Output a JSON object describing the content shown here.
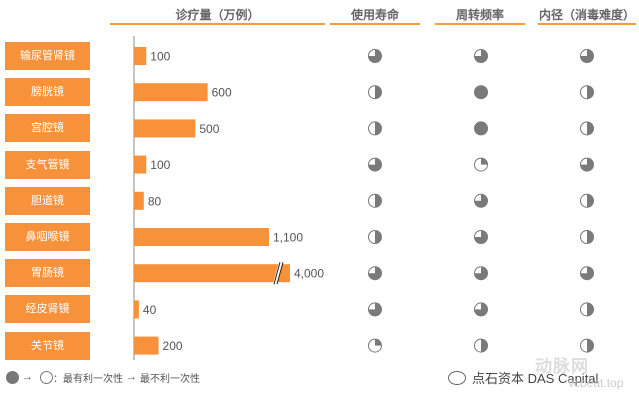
{
  "headers": {
    "volume": "诊疗量（万例）",
    "lifespan": "使用寿命",
    "turnover": "周转频率",
    "diameter": "内径（消毒难度）"
  },
  "legend": {
    "text": "：最有利一次性",
    "arrow_glyph": "→",
    "text2": "最不利一次性"
  },
  "watermark": {
    "brand": "点石资本 DAS Capital",
    "site_text": "动脉网",
    "site_url": "vcbeat.top"
  },
  "colors": {
    "accent": "#f7923a",
    "pie_fill": "#7a7a7a"
  },
  "chart_data": {
    "type": "bar",
    "categories": [
      "输尿管肾镜",
      "膀胱镜",
      "宫腔镜",
      "支气管镜",
      "胆道镜",
      "鼻咽喉镜",
      "胃肠镜",
      "经皮肾镜",
      "关节镜"
    ],
    "values": [
      100,
      600,
      500,
      100,
      80,
      1100,
      4000,
      40,
      200
    ],
    "value_labels": [
      "100",
      "600",
      "500",
      "100",
      "80",
      "1,100",
      "4,000",
      "40",
      "200"
    ],
    "axis_break_on": "胃肠镜",
    "ratings": {
      "lifespan": [
        0.75,
        0.5,
        0.5,
        0.75,
        0.5,
        0.5,
        0.75,
        0.75,
        0.25
      ],
      "turnover": [
        0.75,
        1.0,
        1.0,
        0.25,
        0.75,
        0.75,
        0.75,
        0.75,
        0.5
      ],
      "diameter": [
        0.75,
        0.5,
        0.5,
        0.75,
        0.5,
        0.5,
        0.75,
        0.5,
        0.5
      ]
    }
  }
}
